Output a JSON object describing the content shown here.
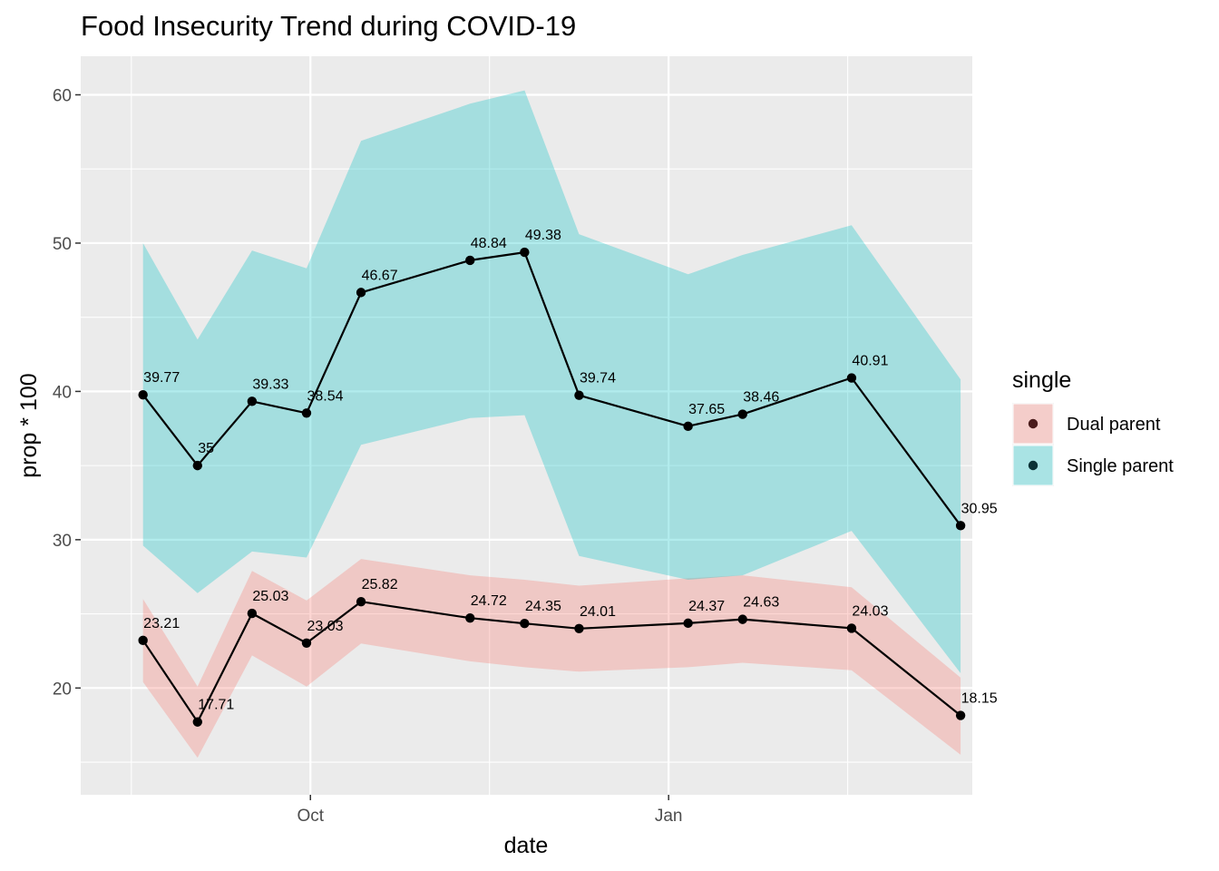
{
  "chart_data": {
    "type": "line",
    "title": "Food Insecurity Trend during COVID-19",
    "xlabel": "date",
    "ylabel": "prop * 100",
    "x": [
      "2020-08-19",
      "2020-09-02",
      "2020-09-16",
      "2020-09-30",
      "2020-10-14",
      "2020-11-11",
      "2020-11-25",
      "2020-12-09",
      "2021-01-06",
      "2021-01-20",
      "2021-02-17",
      "2021-03-17"
    ],
    "x_ticks": [
      {
        "date": "2020-10-01",
        "label": "Oct"
      },
      {
        "date": "2021-01-01",
        "label": "Jan"
      }
    ],
    "xlim": [
      "2020-08-03",
      "2021-03-20"
    ],
    "ylim": [
      12.8,
      62.6
    ],
    "y_ticks": [
      20,
      30,
      40,
      50,
      60
    ],
    "grid": true,
    "legend_title": "single",
    "legend_position": "right",
    "series": [
      {
        "name": "Dual parent",
        "fill_color": "#F8766D",
        "point_color": "#4a1c1c",
        "values": [
          23.21,
          17.71,
          25.03,
          23.03,
          25.82,
          24.72,
          24.35,
          24.01,
          24.37,
          24.63,
          24.03,
          18.15
        ],
        "labels": [
          "23.21",
          "17.71",
          "25.03",
          "23.03",
          "25.82",
          "24.72",
          "24.35",
          "24.01",
          "24.37",
          "24.63",
          "24.03",
          "18.15"
        ],
        "ci_low": [
          20.4,
          15.3,
          22.2,
          20.1,
          23.0,
          21.8,
          21.4,
          21.1,
          21.4,
          21.7,
          21.2,
          15.5
        ],
        "ci_high": [
          26.0,
          20.1,
          27.9,
          25.9,
          28.7,
          27.6,
          27.3,
          26.9,
          27.4,
          27.6,
          26.8,
          20.7
        ]
      },
      {
        "name": "Single parent",
        "fill_color": "#00BFC4",
        "point_color": "#0b3236",
        "values": [
          39.77,
          35.0,
          39.33,
          38.54,
          46.67,
          48.84,
          49.38,
          39.74,
          37.65,
          38.46,
          40.91,
          30.95
        ],
        "labels": [
          "39.77",
          "35",
          "39.33",
          "38.54",
          "46.67",
          "48.84",
          "49.38",
          "39.74",
          "37.65",
          "38.46",
          "40.91",
          "30.95"
        ],
        "ci_low": [
          29.6,
          26.4,
          29.2,
          28.8,
          36.4,
          38.2,
          38.4,
          28.9,
          27.3,
          27.6,
          30.6,
          21.0
        ],
        "ci_high": [
          50.0,
          43.5,
          49.5,
          48.3,
          56.9,
          59.4,
          60.3,
          50.6,
          47.9,
          49.2,
          51.2,
          40.8
        ]
      }
    ]
  }
}
